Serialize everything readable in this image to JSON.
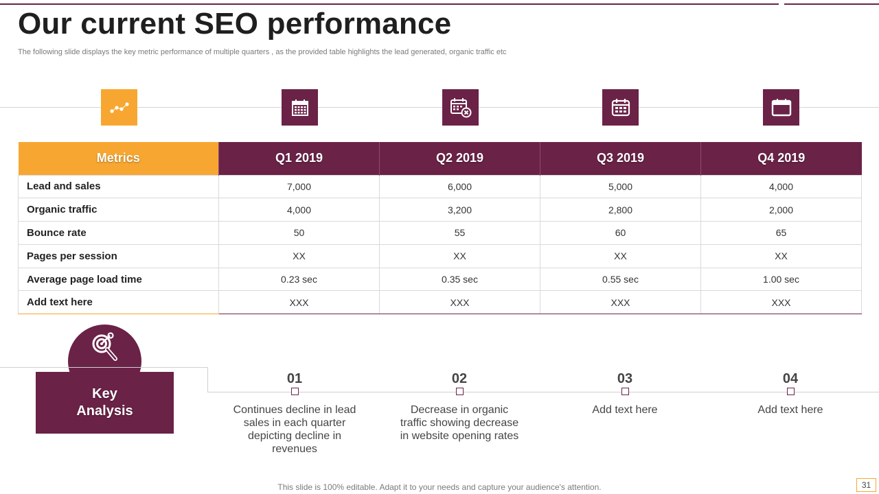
{
  "slide": {
    "title": "Our current SEO performance",
    "subtitle": "The following slide displays the key metric performance of multiple quarters , as the provided table highlights the lead generated, organic traffic etc"
  },
  "colors": {
    "accent": "#f7a731",
    "brand": "#6b2247"
  },
  "icons": [
    "trend-dots-icon",
    "calendar-grid-icon",
    "calendar-remove-icon",
    "calendar-icon",
    "calendar-window-icon"
  ],
  "table": {
    "headers": [
      "Metrics",
      "Q1 2019",
      "Q2 2019",
      "Q3 2019",
      "Q4 2019"
    ],
    "rows": [
      [
        "Lead and sales",
        "7,000",
        "6,000",
        "5,000",
        "4,000"
      ],
      [
        "Organic traffic",
        "4,000",
        "3,200",
        "2,800",
        "2,000"
      ],
      [
        "Bounce rate",
        "50",
        "55",
        "60",
        "65"
      ],
      [
        "Pages per session",
        "XX",
        "XX",
        "XX",
        "XX"
      ],
      [
        "Average page load time",
        "0.23 sec",
        "0.35 sec",
        "0.55 sec",
        "1.00 sec"
      ],
      [
        "Add text here",
        "XXX",
        "XXX",
        "XXX",
        "XXX"
      ]
    ]
  },
  "key_analysis": {
    "title_line1": "Key",
    "title_line2": "Analysis",
    "steps": [
      {
        "number": "01",
        "text": "Continues decline in lead sales in each quarter depicting decline in revenues"
      },
      {
        "number": "02",
        "text": "Decrease in organic traffic showing decrease in website opening rates"
      },
      {
        "number": "03",
        "text": "Add text here"
      },
      {
        "number": "04",
        "text": "Add text here"
      }
    ]
  },
  "footer": {
    "text": "This slide is 100% editable. Adapt it to your needs and capture your audience's attention.",
    "page_number": "31"
  }
}
